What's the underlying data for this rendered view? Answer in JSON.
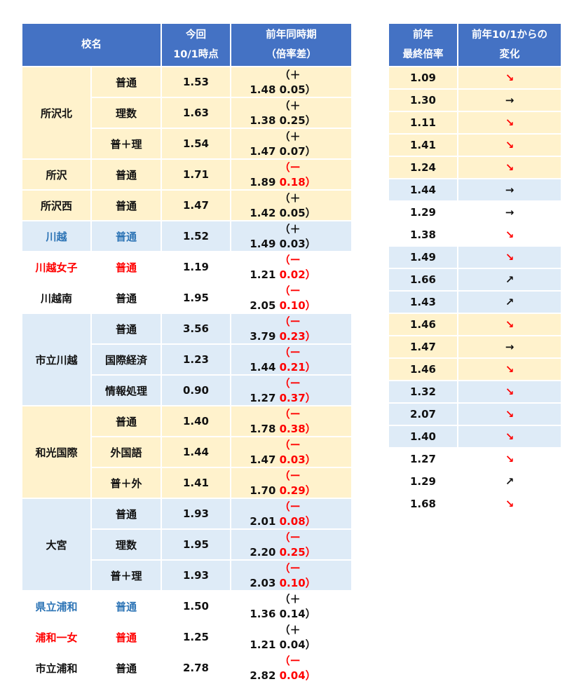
{
  "headers": {
    "school": "校名",
    "current_line1": "今回",
    "current_line2": "10/1時点",
    "prev_line1": "前年同時期",
    "prev_line2": "（倍率差）",
    "final_line1": "前年",
    "final_line2": "最終倍率",
    "change_line1": "前年10/1からの",
    "change_line2": "変化"
  },
  "rows": [
    {
      "school": "所沢北",
      "course": "普通",
      "current": "1.53",
      "prev": "1.48",
      "diff": "（＋ 0.05）",
      "final": "1.09",
      "change": "↘"
    },
    {
      "school": "",
      "course": "理数",
      "current": "1.63",
      "prev": "1.38",
      "diff": "（＋ 0.25）",
      "final": "1.30",
      "change": "→"
    },
    {
      "school": "",
      "course": "普＋理",
      "current": "1.54",
      "prev": "1.47",
      "diff": "（＋ 0.07）",
      "final": "1.11",
      "change": "↘"
    },
    {
      "school": "所沢",
      "course": "普通",
      "current": "1.71",
      "prev": "1.89",
      "diff": "（ー 0.18）",
      "final": "1.41",
      "change": "↘"
    },
    {
      "school": "所沢西",
      "course": "普通",
      "current": "1.47",
      "prev": "1.42",
      "diff": "（＋ 0.05）",
      "final": "1.24",
      "change": "↘"
    },
    {
      "school": "川越",
      "course": "普通",
      "current": "1.52",
      "prev": "1.49",
      "diff": "（＋ 0.03）",
      "final": "1.44",
      "change": "→"
    },
    {
      "school": "川越女子",
      "course": "普通",
      "current": "1.19",
      "prev": "1.21",
      "diff": "（ー 0.02）",
      "final": "1.29",
      "change": "→"
    },
    {
      "school": "川越南",
      "course": "普通",
      "current": "1.95",
      "prev": "2.05",
      "diff": "（ー 0.10）",
      "final": "1.38",
      "change": "↘"
    },
    {
      "school": "市立川越",
      "course": "普通",
      "current": "3.56",
      "prev": "3.79",
      "diff": "（ー 0.23）",
      "final": "1.49",
      "change": "↘"
    },
    {
      "school": "",
      "course": "国際経済",
      "current": "1.23",
      "prev": "1.44",
      "diff": "（ー 0.21）",
      "final": "1.66",
      "change": "↗"
    },
    {
      "school": "",
      "course": "情報処理",
      "current": "0.90",
      "prev": "1.27",
      "diff": "（ー 0.37）",
      "final": "1.43",
      "change": "↗"
    },
    {
      "school": "和光国際",
      "course": "普通",
      "current": "1.40",
      "prev": "1.78",
      "diff": "（ー 0.38）",
      "final": "1.46",
      "change": "↘"
    },
    {
      "school": "",
      "course": "外国語",
      "current": "1.44",
      "prev": "1.47",
      "diff": "（ー 0.03）",
      "final": "1.47",
      "change": "→"
    },
    {
      "school": "",
      "course": "普＋外",
      "current": "1.41",
      "prev": "1.70",
      "diff": "（ー 0.29）",
      "final": "1.46",
      "change": "↘"
    },
    {
      "school": "大宮",
      "course": "普通",
      "current": "1.93",
      "prev": "2.01",
      "diff": "（ー 0.08）",
      "final": "1.32",
      "change": "↘"
    },
    {
      "school": "",
      "course": "理数",
      "current": "1.95",
      "prev": "2.20",
      "diff": "（ー 0.25）",
      "final": "2.07",
      "change": "↘"
    },
    {
      "school": "",
      "course": "普＋理",
      "current": "1.93",
      "prev": "2.03",
      "diff": "（ー 0.10）",
      "final": "1.40",
      "change": "↘"
    },
    {
      "school": "県立浦和",
      "course": "普通",
      "current": "1.50",
      "prev": "1.36",
      "diff": "（＋ 0.14）",
      "final": "1.27",
      "change": "↘"
    },
    {
      "school": "浦和一女",
      "course": "普通",
      "current": "1.25",
      "prev": "1.21",
      "diff": "（＋ 0.04）",
      "final": "1.29",
      "change": "↗"
    },
    {
      "school": "市立浦和",
      "course": "普通",
      "current": "2.78",
      "prev": "2.82",
      "diff": "（ー 0.04）",
      "final": "1.68",
      "change": "↘"
    }
  ],
  "colors": {
    "header_bg": "#4472c4",
    "yellow_row": "#fff2cc",
    "blue_row": "#deebf7",
    "boys_school_text": "#2e75b6",
    "girls_school_text": "#ff0000",
    "decrease_text": "#ff0000"
  }
}
